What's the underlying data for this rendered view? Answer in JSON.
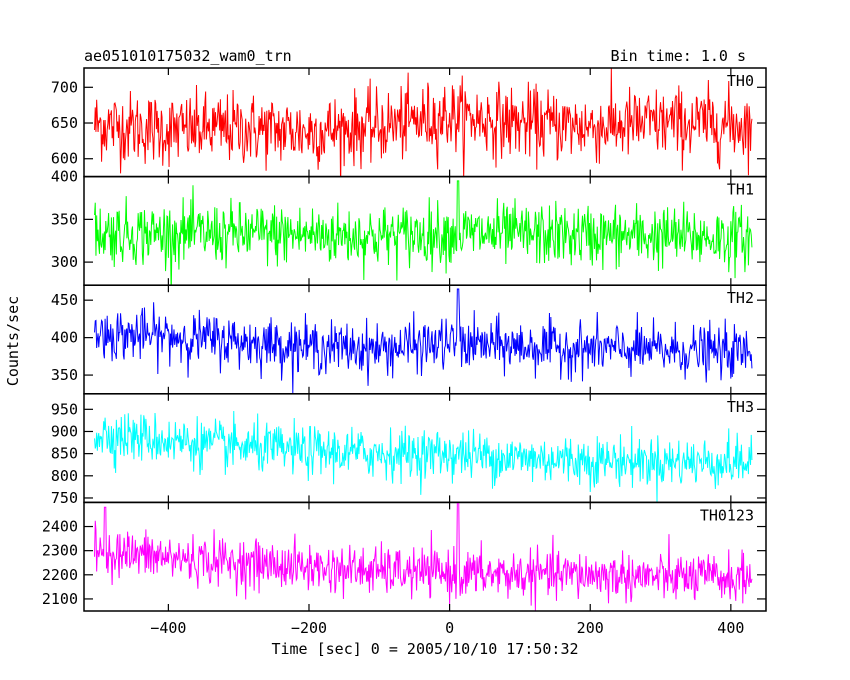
{
  "header": {
    "left_title": "ae051010175032_wam0_trn",
    "right_title": "Bin time: 1.0 s"
  },
  "chart_data": {
    "type": "line",
    "title": "ae051010175032_wam0_trn",
    "subtitle": "Bin time: 1.0 s",
    "xlabel": "Time [sec] 0 = 2005/10/10 17:50:32",
    "ylabel": "Counts/sec",
    "xlim": [
      -520,
      450
    ],
    "x_start": -505,
    "x_end": 430,
    "x_step": 1,
    "x_ticks": [
      -400,
      -200,
      0,
      200,
      400
    ],
    "x_tick_labels": [
      "−400",
      "−200",
      "0",
      "200",
      "400"
    ],
    "grid": false,
    "panels": [
      {
        "name": "TH0",
        "color": "#ff0000",
        "ylim": [
          575,
          727
        ],
        "yticks": [
          600,
          650,
          700
        ],
        "ytick_labels": [
          "600",
          "650",
          "700"
        ],
        "bottom_label": "400",
        "trend_x": [
          -505,
          -400,
          -300,
          -200,
          -100,
          0,
          100,
          200,
          300,
          430
        ],
        "trend_y": [
          648,
          640,
          642,
          638,
          645,
          660,
          650,
          645,
          650,
          648
        ],
        "noise_sd": 25,
        "spikes": []
      },
      {
        "name": "TH1",
        "color": "#00ff00",
        "ylim": [
          273,
          400
        ],
        "yticks": [
          300,
          350
        ],
        "ytick_labels": [
          "300",
          "350"
        ],
        "trend_x": [
          -505,
          -400,
          -300,
          -200,
          -100,
          0,
          100,
          200,
          300,
          430
        ],
        "trend_y": [
          335,
          333,
          333,
          332,
          330,
          334,
          332,
          331,
          330,
          328
        ],
        "noise_sd": 18,
        "spikes": [
          [
            12,
            395
          ]
        ]
      },
      {
        "name": "TH2",
        "color": "#0000ff",
        "ylim": [
          325,
          470
        ],
        "yticks": [
          350,
          400,
          450
        ],
        "ytick_labels": [
          "350",
          "400",
          "450"
        ],
        "trend_x": [
          -505,
          -400,
          -300,
          -200,
          -100,
          0,
          100,
          200,
          300,
          430
        ],
        "trend_y": [
          405,
          402,
          395,
          388,
          385,
          392,
          388,
          385,
          383,
          380
        ],
        "noise_sd": 17,
        "spikes": [
          [
            12,
            465
          ]
        ]
      },
      {
        "name": "TH3",
        "color": "#00ffff",
        "ylim": [
          740,
          985
        ],
        "yticks": [
          750,
          800,
          850,
          900,
          950
        ],
        "ytick_labels": [
          "750",
          "800",
          "850",
          "900",
          "950"
        ],
        "trend_x": [
          -505,
          -400,
          -300,
          -200,
          -100,
          0,
          100,
          200,
          300,
          430
        ],
        "trend_y": [
          895,
          880,
          865,
          855,
          850,
          850,
          840,
          835,
          832,
          830
        ],
        "noise_sd": 28,
        "spikes": []
      },
      {
        "name": "TH0123",
        "color": "#ff00ff",
        "ylim": [
          2050,
          2500
        ],
        "yticks": [
          2100,
          2200,
          2300,
          2400
        ],
        "ytick_labels": [
          "2100",
          "2200",
          "2300",
          "2400"
        ],
        "trend_x": [
          -505,
          -400,
          -300,
          -200,
          -100,
          0,
          100,
          200,
          300,
          430
        ],
        "trend_y": [
          2300,
          2270,
          2250,
          2230,
          2215,
          2205,
          2200,
          2200,
          2190,
          2185
        ],
        "noise_sd": 50,
        "spikes": [
          [
            12,
            2500
          ],
          [
            -490,
            2480
          ]
        ]
      }
    ]
  }
}
